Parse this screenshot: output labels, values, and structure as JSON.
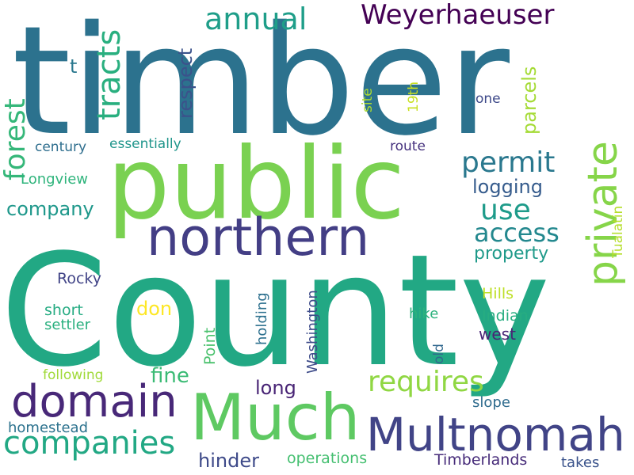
{
  "wordcloud": {
    "palette": "viridis",
    "background": "#ffffff",
    "words": [
      {
        "text": "timber",
        "color": "#2c728e"
      },
      {
        "text": "County",
        "color": "#22a884"
      },
      {
        "text": "public",
        "color": "#7ad151"
      },
      {
        "text": "northern",
        "color": "#433e85"
      },
      {
        "text": "Much",
        "color": "#5ec962"
      },
      {
        "text": "Multnomah",
        "color": "#414487"
      },
      {
        "text": "domain",
        "color": "#482878"
      },
      {
        "text": "companies",
        "color": "#22a884"
      },
      {
        "text": "private",
        "color": "#86d549"
      },
      {
        "text": "Weyerhaeuser",
        "color": "#440154"
      },
      {
        "text": "annual",
        "color": "#1f9e89"
      },
      {
        "text": "tracts",
        "color": "#29af7f"
      },
      {
        "text": "forest",
        "color": "#35b779"
      },
      {
        "text": "permit",
        "color": "#2a788e"
      },
      {
        "text": "use",
        "color": "#1e9b8a"
      },
      {
        "text": "access",
        "color": "#23888e"
      },
      {
        "text": "requires",
        "color": "#90d743"
      },
      {
        "text": "respect",
        "color": "#3b528b"
      },
      {
        "text": "parcels",
        "color": "#a5db36"
      },
      {
        "text": "company",
        "color": "#1f988b"
      },
      {
        "text": "logging",
        "color": "#365c8d"
      },
      {
        "text": "property",
        "color": "#1f9a8a"
      },
      {
        "text": "t",
        "color": "#2a788e"
      },
      {
        "text": "fine",
        "color": "#3bbb75"
      },
      {
        "text": "long",
        "color": "#482475"
      },
      {
        "text": "don",
        "color": "#fde725"
      },
      {
        "text": "hinder",
        "color": "#3e4a89"
      },
      {
        "text": "century",
        "color": "#2e6e8e"
      },
      {
        "text": "essentially",
        "color": "#1f958b"
      },
      {
        "text": "Longview",
        "color": "#2fb47c"
      },
      {
        "text": "route",
        "color": "#46327e"
      },
      {
        "text": "site",
        "color": "#addc30"
      },
      {
        "text": "19th",
        "color": "#c8e020"
      },
      {
        "text": "one",
        "color": "#3e4989"
      },
      {
        "text": "Tualatin",
        "color": "#b5de2b"
      },
      {
        "text": "Rocky",
        "color": "#414487"
      },
      {
        "text": "Hills",
        "color": "#bddf26"
      },
      {
        "text": "Indian",
        "color": "#27ad81"
      },
      {
        "text": "hike",
        "color": "#2db27d"
      },
      {
        "text": "west",
        "color": "#482475"
      },
      {
        "text": "old",
        "color": "#31688e"
      },
      {
        "text": "short",
        "color": "#25ab82"
      },
      {
        "text": "settler",
        "color": "#2ab07f"
      },
      {
        "text": "holding",
        "color": "#2d708e"
      },
      {
        "text": "Washington",
        "color": "#3e4c8a"
      },
      {
        "text": "Point",
        "color": "#4ac16d"
      },
      {
        "text": "following",
        "color": "#a0da39"
      },
      {
        "text": "slope",
        "color": "#2f6c8e"
      },
      {
        "text": "homestead",
        "color": "#2c728e"
      },
      {
        "text": "operations",
        "color": "#44bf70"
      },
      {
        "text": "Timberlands",
        "color": "#472c7a"
      },
      {
        "text": "takes",
        "color": "#3a538b"
      }
    ]
  }
}
